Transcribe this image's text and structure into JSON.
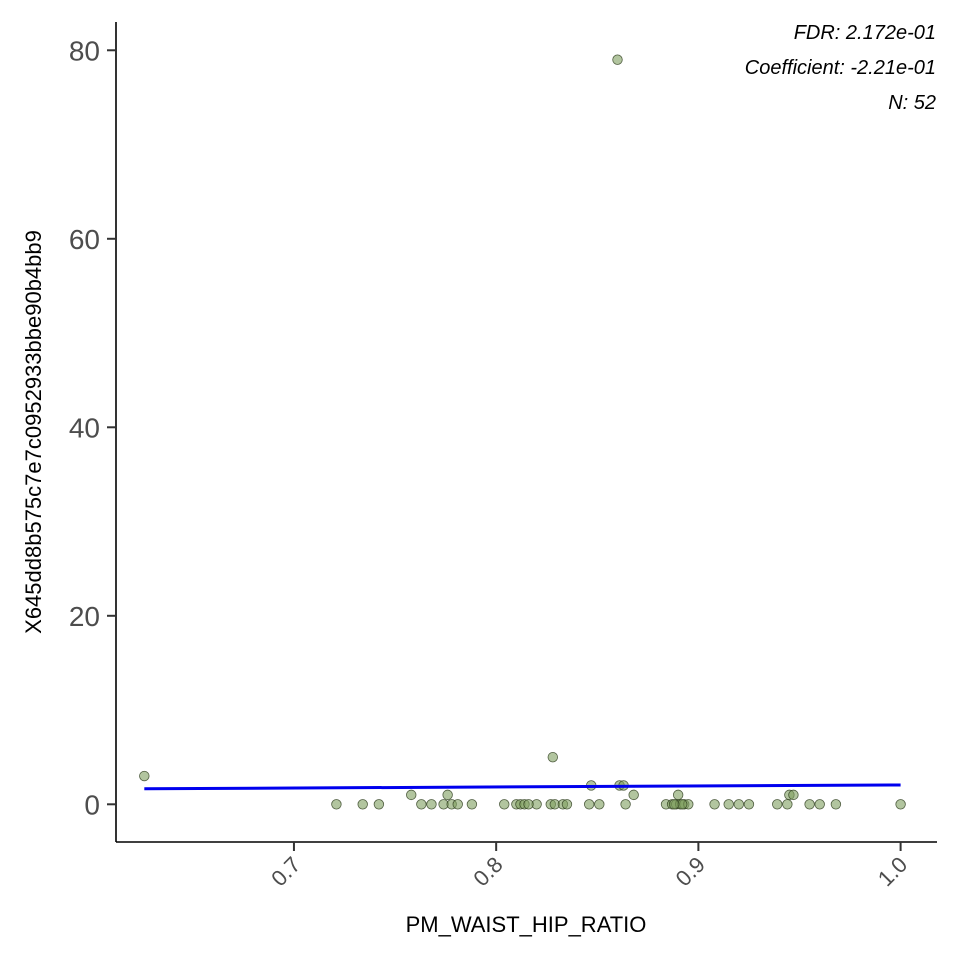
{
  "chart_data": {
    "type": "scatter",
    "xlabel": "PM_WAIST_HIP_RATIO",
    "ylabel": "X645dd8b575c7e7c0952933bbe90b4bb9",
    "xlim": [
      0.612,
      1.018
    ],
    "ylim": [
      -4,
      83
    ],
    "xticks": [
      0.7,
      0.8,
      0.9,
      1.0
    ],
    "xtick_labels": [
      "0.7",
      "0.8",
      "0.9",
      "1.0"
    ],
    "yticks": [
      0,
      20,
      40,
      60,
      80
    ],
    "ytick_labels": [
      "0",
      "20",
      "40",
      "60",
      "80"
    ],
    "grid": false,
    "colors": {
      "point_fill": "#7f9f5f",
      "point_edge": "#2f3f1f",
      "fit_line": "#0000ee"
    },
    "annotations": [
      "FDR: 2.172e-01",
      "Coefficient: -2.21e-01",
      "N: 52"
    ],
    "points": [
      [
        0.626,
        3
      ],
      [
        0.721,
        0
      ],
      [
        0.734,
        0
      ],
      [
        0.742,
        0
      ],
      [
        0.758,
        1
      ],
      [
        0.763,
        0
      ],
      [
        0.768,
        0
      ],
      [
        0.774,
        0
      ],
      [
        0.776,
        1
      ],
      [
        0.778,
        0
      ],
      [
        0.781,
        0
      ],
      [
        0.788,
        0
      ],
      [
        0.804,
        0
      ],
      [
        0.81,
        0
      ],
      [
        0.812,
        0
      ],
      [
        0.814,
        0
      ],
      [
        0.82,
        0
      ],
      [
        0.827,
        0
      ],
      [
        0.829,
        0
      ],
      [
        0.828,
        5
      ],
      [
        0.833,
        0
      ],
      [
        0.835,
        0
      ],
      [
        0.846,
        0
      ],
      [
        0.847,
        2
      ],
      [
        0.851,
        0
      ],
      [
        0.86,
        79
      ],
      [
        0.861,
        2
      ],
      [
        0.863,
        2
      ],
      [
        0.864,
        0
      ],
      [
        0.868,
        1
      ],
      [
        0.884,
        0
      ],
      [
        0.887,
        0
      ],
      [
        0.889,
        0
      ],
      [
        0.89,
        1
      ],
      [
        0.891,
        0
      ],
      [
        0.893,
        0
      ],
      [
        0.895,
        0
      ],
      [
        0.908,
        0
      ],
      [
        0.915,
        0
      ],
      [
        0.92,
        0
      ],
      [
        0.925,
        0
      ],
      [
        0.939,
        0
      ],
      [
        0.944,
        0
      ],
      [
        0.945,
        1
      ],
      [
        0.947,
        1
      ],
      [
        0.955,
        0
      ],
      [
        0.96,
        0
      ],
      [
        0.968,
        0
      ],
      [
        1.0,
        0
      ],
      [
        0.892,
        0
      ],
      [
        0.816,
        0
      ],
      [
        0.888,
        0
      ]
    ],
    "fit_line": {
      "x": [
        0.626,
        1.0
      ],
      "y": [
        1.65,
        2.05
      ]
    }
  }
}
